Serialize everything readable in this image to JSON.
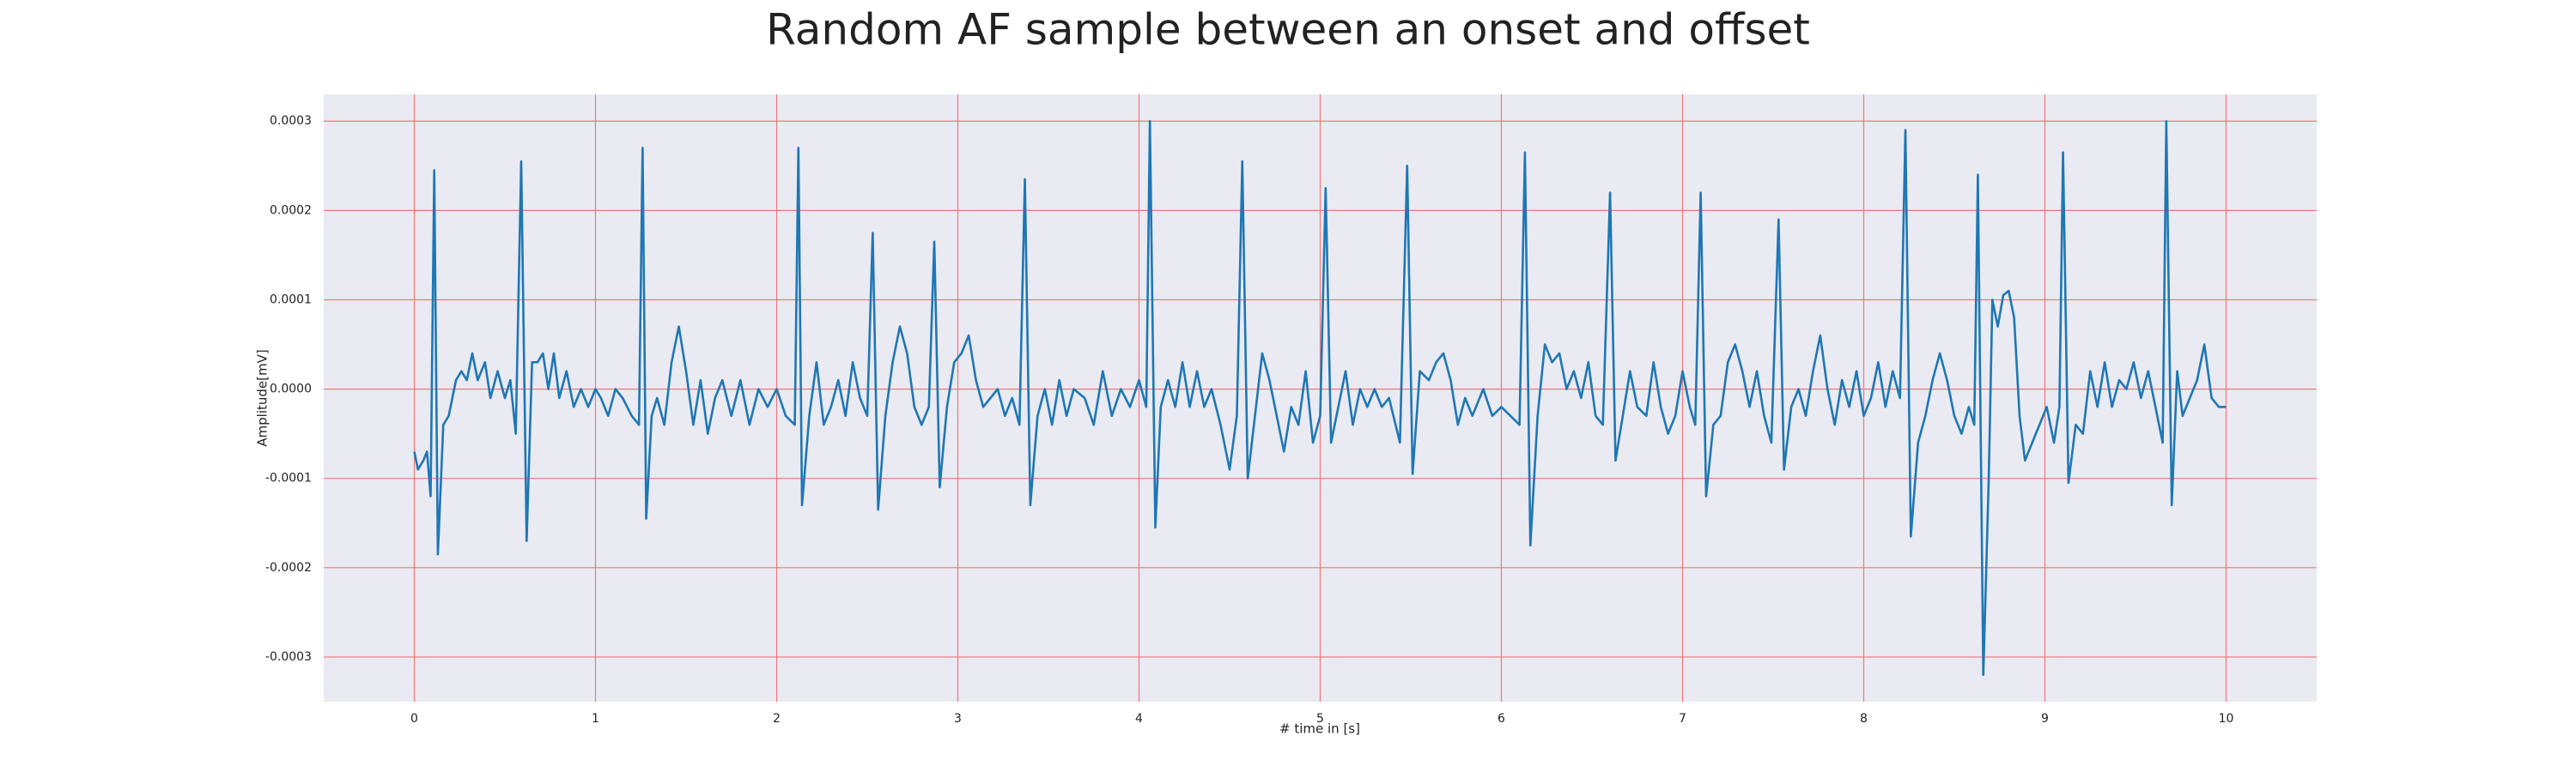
{
  "chart_data": {
    "type": "line",
    "title": "Random AF sample between an onset and offset",
    "xlabel": "# time in [s]",
    "ylabel": "Amplitude[mV]",
    "color": "#1f77b4",
    "grid": true,
    "xlim": [
      -0.5,
      10.5
    ],
    "ylim": [
      -0.00035,
      0.00033
    ],
    "xticks": [
      0,
      1,
      2,
      3,
      4,
      5,
      6,
      7,
      8,
      9,
      10
    ],
    "yticks": [
      -0.0003,
      -0.0002,
      -0.0001,
      {
        "value": 0,
        "label": "0.0000"
      },
      0.0001,
      0.0002,
      0.0003
    ],
    "x": [
      0.0,
      0.02,
      0.05,
      0.07,
      0.09,
      0.11,
      0.13,
      0.16,
      0.19,
      0.23,
      0.26,
      0.29,
      0.32,
      0.35,
      0.39,
      0.42,
      0.46,
      0.5,
      0.53,
      0.56,
      0.59,
      0.62,
      0.65,
      0.68,
      0.71,
      0.74,
      0.77,
      0.8,
      0.84,
      0.88,
      0.92,
      0.96,
      1.0,
      1.03,
      1.07,
      1.11,
      1.15,
      1.2,
      1.24,
      1.26,
      1.28,
      1.31,
      1.34,
      1.38,
      1.42,
      1.46,
      1.5,
      1.54,
      1.58,
      1.62,
      1.66,
      1.7,
      1.75,
      1.8,
      1.85,
      1.9,
      1.95,
      2.0,
      2.05,
      2.1,
      2.12,
      2.14,
      2.18,
      2.22,
      2.26,
      2.3,
      2.34,
      2.38,
      2.42,
      2.46,
      2.5,
      2.53,
      2.56,
      2.6,
      2.64,
      2.68,
      2.72,
      2.76,
      2.8,
      2.84,
      2.87,
      2.9,
      2.94,
      2.98,
      3.02,
      3.06,
      3.1,
      3.14,
      3.18,
      3.22,
      3.26,
      3.3,
      3.34,
      3.37,
      3.4,
      3.44,
      3.48,
      3.52,
      3.56,
      3.6,
      3.64,
      3.7,
      3.75,
      3.8,
      3.85,
      3.9,
      3.95,
      4.0,
      4.04,
      4.06,
      4.09,
      4.12,
      4.16,
      4.2,
      4.24,
      4.28,
      4.32,
      4.36,
      4.4,
      4.45,
      4.5,
      4.54,
      4.57,
      4.6,
      4.64,
      4.68,
      4.72,
      4.76,
      4.8,
      4.84,
      4.88,
      4.92,
      4.96,
      5.0,
      5.03,
      5.06,
      5.1,
      5.14,
      5.18,
      5.22,
      5.26,
      5.3,
      5.34,
      5.38,
      5.44,
      5.48,
      5.51,
      5.55,
      5.6,
      5.64,
      5.68,
      5.72,
      5.76,
      5.8,
      5.84,
      5.9,
      5.95,
      6.0,
      6.05,
      6.1,
      6.13,
      6.16,
      6.2,
      6.24,
      6.28,
      6.32,
      6.36,
      6.4,
      6.44,
      6.48,
      6.52,
      6.56,
      6.6,
      6.63,
      6.67,
      6.71,
      6.75,
      6.8,
      6.84,
      6.88,
      6.92,
      6.96,
      7.0,
      7.04,
      7.07,
      7.1,
      7.13,
      7.17,
      7.21,
      7.25,
      7.29,
      7.33,
      7.37,
      7.41,
      7.45,
      7.49,
      7.53,
      7.56,
      7.6,
      7.64,
      7.68,
      7.72,
      7.76,
      7.8,
      7.84,
      7.88,
      7.92,
      7.96,
      8.0,
      8.04,
      8.08,
      8.12,
      8.16,
      8.2,
      8.23,
      8.26,
      8.3,
      8.34,
      8.38,
      8.42,
      8.46,
      8.5,
      8.54,
      8.58,
      8.61,
      8.63,
      8.66,
      8.69,
      8.71,
      8.74,
      8.77,
      8.8,
      8.83,
      8.86,
      8.89,
      8.93,
      8.97,
      9.01,
      9.05,
      9.08,
      9.1,
      9.13,
      9.17,
      9.21,
      9.25,
      9.29,
      9.33,
      9.37,
      9.41,
      9.45,
      9.49,
      9.53,
      9.57,
      9.61,
      9.65,
      9.67,
      9.7,
      9.73,
      9.76,
      9.8,
      9.84,
      9.88,
      9.92,
      9.96,
      10.0
    ],
    "values": [
      -7e-05,
      -9e-05,
      -8e-05,
      -7e-05,
      -0.00012,
      0.000245,
      -0.000185,
      -4e-05,
      -3e-05,
      1e-05,
      2e-05,
      1e-05,
      4e-05,
      1e-05,
      3e-05,
      -1e-05,
      2e-05,
      -1e-05,
      1e-05,
      -5e-05,
      0.000255,
      -0.00017,
      3e-05,
      3e-05,
      4e-05,
      0.0,
      4e-05,
      -1e-05,
      2e-05,
      -2e-05,
      0.0,
      -2e-05,
      0.0,
      -1e-05,
      -3e-05,
      0.0,
      -1e-05,
      -3e-05,
      -4e-05,
      0.00027,
      -0.000145,
      -3e-05,
      -1e-05,
      -4e-05,
      3e-05,
      7e-05,
      2e-05,
      -4e-05,
      1e-05,
      -5e-05,
      -1e-05,
      1e-05,
      -3e-05,
      1e-05,
      -4e-05,
      0.0,
      -2e-05,
      0.0,
      -3e-05,
      -4e-05,
      0.00027,
      -0.00013,
      -3e-05,
      3e-05,
      -4e-05,
      -2e-05,
      1e-05,
      -3e-05,
      3e-05,
      -1e-05,
      -3e-05,
      0.000175,
      -0.000135,
      -3e-05,
      3e-05,
      7e-05,
      4e-05,
      -2e-05,
      -4e-05,
      -2e-05,
      0.000165,
      -0.00011,
      -2e-05,
      3e-05,
      4e-05,
      6e-05,
      1e-05,
      -2e-05,
      -1e-05,
      0.0,
      -3e-05,
      -1e-05,
      -4e-05,
      0.000235,
      -0.00013,
      -3e-05,
      0.0,
      -4e-05,
      1e-05,
      -3e-05,
      0.0,
      -1e-05,
      -4e-05,
      2e-05,
      -3e-05,
      0.0,
      -2e-05,
      1e-05,
      -2e-05,
      0.0003,
      -0.000155,
      -2e-05,
      1e-05,
      -2e-05,
      3e-05,
      -2e-05,
      2e-05,
      -2e-05,
      0.0,
      -4e-05,
      -9e-05,
      -3e-05,
      0.000255,
      -0.0001,
      -3e-05,
      4e-05,
      1e-05,
      -3e-05,
      -7e-05,
      -2e-05,
      -4e-05,
      2e-05,
      -6e-05,
      -3e-05,
      0.000225,
      -6e-05,
      -2e-05,
      2e-05,
      -4e-05,
      0.0,
      -2e-05,
      0.0,
      -2e-05,
      -1e-05,
      -6e-05,
      0.00025,
      -9.5e-05,
      2e-05,
      1e-05,
      3e-05,
      4e-05,
      1e-05,
      -4e-05,
      -1e-05,
      -3e-05,
      0.0,
      -3e-05,
      -2e-05,
      -3e-05,
      -4e-05,
      0.000265,
      -0.000175,
      -3e-05,
      5e-05,
      3e-05,
      4e-05,
      0.0,
      2e-05,
      -1e-05,
      3e-05,
      -3e-05,
      -4e-05,
      0.00022,
      -8e-05,
      -3e-05,
      2e-05,
      -2e-05,
      -3e-05,
      3e-05,
      -2e-05,
      -5e-05,
      -3e-05,
      2e-05,
      -2e-05,
      -4e-05,
      0.00022,
      -0.00012,
      -4e-05,
      -3e-05,
      3e-05,
      5e-05,
      2e-05,
      -2e-05,
      2e-05,
      -3e-05,
      -6e-05,
      0.00019,
      -9e-05,
      -2e-05,
      0.0,
      -3e-05,
      2e-05,
      6e-05,
      0.0,
      -4e-05,
      1e-05,
      -2e-05,
      2e-05,
      -3e-05,
      -1e-05,
      3e-05,
      -2e-05,
      2e-05,
      -1e-05,
      0.00029,
      -0.000165,
      -6e-05,
      -3e-05,
      1e-05,
      4e-05,
      1e-05,
      -3e-05,
      -5e-05,
      -2e-05,
      -4e-05,
      0.00024,
      -0.00032,
      -0.0001,
      0.0001,
      7e-05,
      0.000105,
      0.00011,
      8e-05,
      -3e-05,
      -8e-05,
      -6e-05,
      -4e-05,
      -2e-05,
      -6e-05,
      -2e-05,
      0.000265,
      -0.000105,
      -4e-05,
      -5e-05,
      2e-05,
      -2e-05,
      3e-05,
      -2e-05,
      1e-05,
      0.0,
      3e-05,
      -1e-05,
      2e-05,
      -2e-05,
      -6e-05,
      0.0003,
      -0.00013,
      2e-05,
      -3e-05,
      -1e-05,
      1e-05,
      5e-05,
      -1e-05,
      -2e-05,
      -2e-05
    ]
  }
}
